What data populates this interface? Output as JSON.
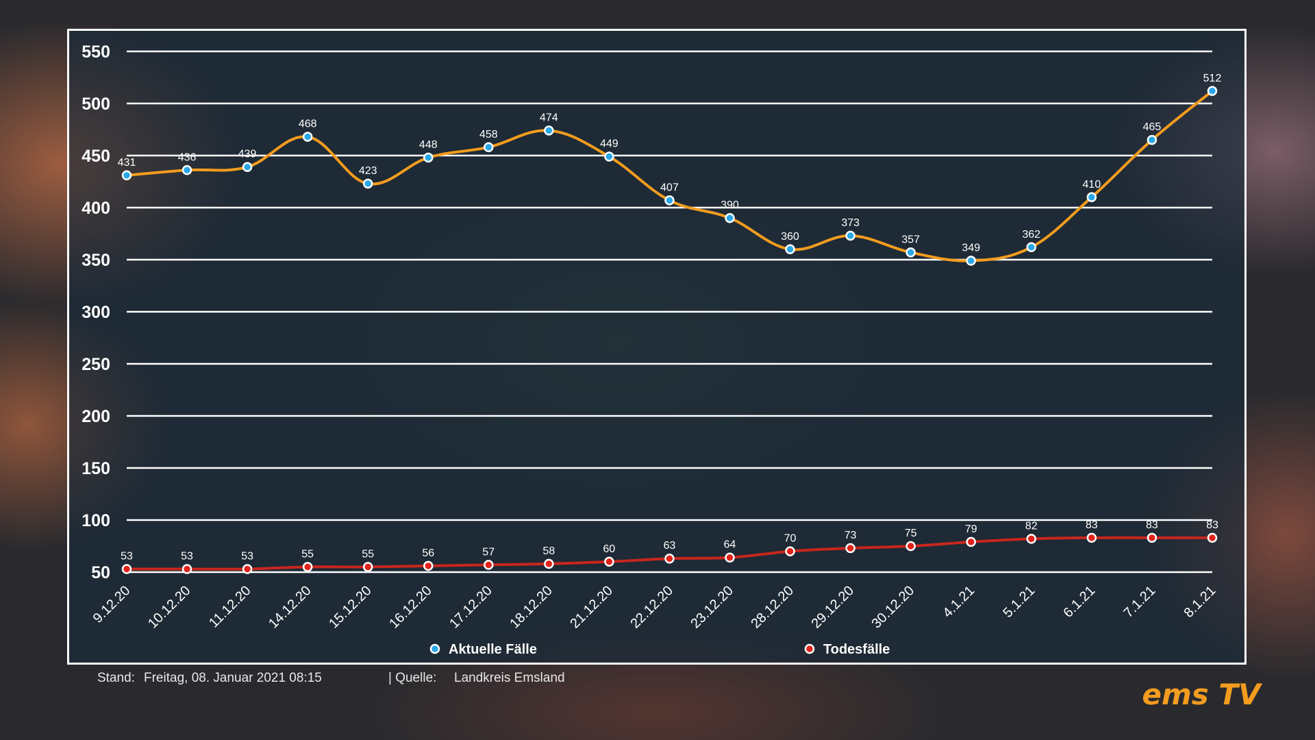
{
  "chart_data": {
    "type": "line",
    "categories": [
      "9.12.20",
      "10.12.20",
      "11.12.20",
      "14.12.20",
      "15.12.20",
      "16.12.20",
      "17.12.20",
      "18.12.20",
      "21.12.20",
      "22.12.20",
      "23.12.20",
      "28.12.20",
      "29.12.20",
      "30.12.20",
      "4.1.21",
      "5.1.21",
      "6.1.21",
      "7.1.21",
      "8.1.21"
    ],
    "series": [
      {
        "name": "Aktuelle Fälle",
        "color": "#f39c1f",
        "marker_color": "#2aa7e8",
        "values": [
          431,
          436,
          439,
          468,
          423,
          448,
          458,
          474,
          449,
          407,
          390,
          360,
          373,
          357,
          349,
          362,
          410,
          465,
          512
        ]
      },
      {
        "name": "Todesfälle",
        "color": "#c8261e",
        "marker_color": "#e0231b",
        "values": [
          53,
          53,
          53,
          55,
          55,
          56,
          57,
          58,
          60,
          63,
          64,
          70,
          73,
          75,
          79,
          82,
          83,
          83,
          83
        ]
      }
    ],
    "yticks": [
      50,
      100,
      150,
      200,
      250,
      300,
      350,
      400,
      450,
      500,
      550
    ],
    "ylim": [
      50,
      550
    ],
    "grid": true,
    "legend_position": "bottom"
  },
  "footer": {
    "stand_label": "Stand:",
    "stand_value": "Freitag, 08. Januar 2021 08:15",
    "source_label": "| Quelle:",
    "source_value": "Landkreis Emsland"
  },
  "logo": {
    "text": "ems TV",
    "color": "#f39c1f"
  }
}
